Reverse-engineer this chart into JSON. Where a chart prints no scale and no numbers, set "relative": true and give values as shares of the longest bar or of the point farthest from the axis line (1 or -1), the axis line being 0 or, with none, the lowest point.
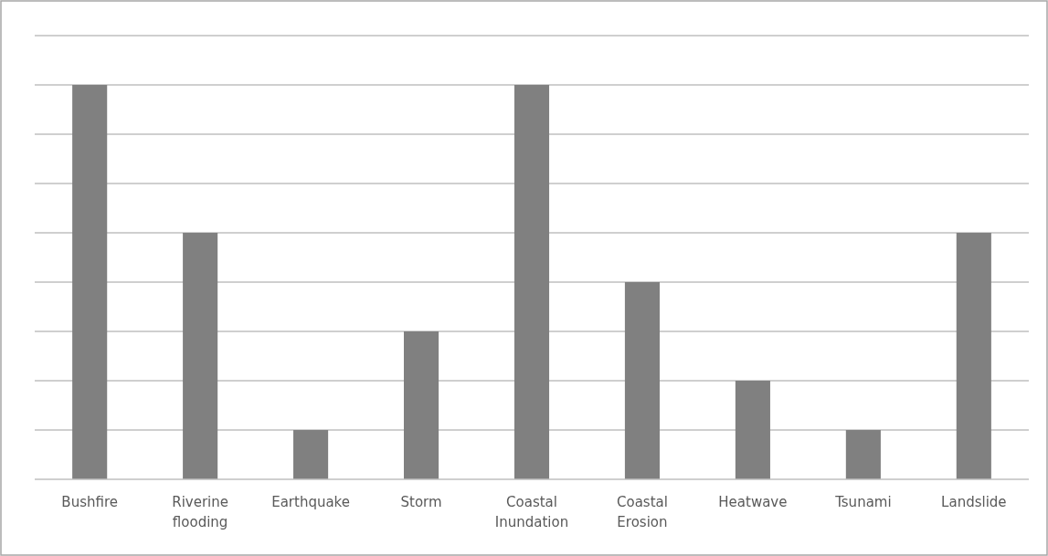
{
  "chart_data": {
    "type": "bar",
    "relative": true,
    "grid": "y",
    "categories": [
      "Bushfire",
      "Riverine flooding",
      "Earthquake",
      "Storm",
      "Coastal Inundation",
      "Coastal Erosion",
      "Heatwave",
      "Tsunami",
      "Landslide"
    ],
    "values": [
      1,
      0.625,
      0.125,
      0.375,
      1,
      0.5,
      0.25,
      0.125,
      0.625
    ],
    "color": "#808080"
  }
}
